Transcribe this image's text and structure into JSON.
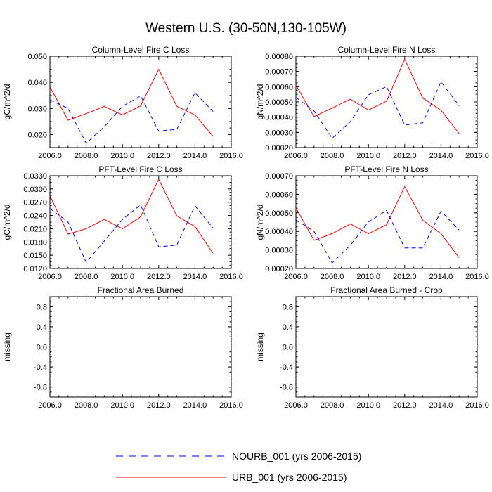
{
  "figure": {
    "title": "Western U.S. (30-50N,130-105W)"
  },
  "colors": {
    "urb": "#ff0000",
    "nourb": "#0000ff",
    "axis": "#000000"
  },
  "legend": {
    "entries": [
      {
        "label": "NOURB_001 (yrs 2006-2015)",
        "series": "nourb",
        "style": "dashed"
      },
      {
        "label": "URB_001 (yrs 2006-2015)",
        "series": "urb",
        "style": "solid"
      }
    ]
  },
  "chart_data": [
    {
      "type": "line",
      "title": "Column-Level Fire C Loss",
      "ylabel": "gC/m^2/d",
      "xlim": [
        2006,
        2016
      ],
      "ylim": [
        0.015,
        0.05
      ],
      "xticks": [
        2006,
        2008,
        2010,
        2012,
        2014,
        2016
      ],
      "xtick_labels": [
        "2006.0",
        "2008.0",
        "2010.0",
        "2012.0",
        "2014.0",
        "2016.0"
      ],
      "yticks": [
        0.02,
        0.03,
        0.04,
        0.05
      ],
      "ytick_labels": [
        "0.020",
        "0.030",
        "0.040",
        "0.050"
      ],
      "x": [
        2006,
        2007,
        2008,
        2009,
        2010,
        2011,
        2012,
        2013,
        2014,
        2015
      ],
      "series": [
        {
          "name": "URB_001",
          "key": "urb",
          "values": [
            0.0383,
            0.0255,
            0.028,
            0.0308,
            0.0275,
            0.031,
            0.045,
            0.0308,
            0.0275,
            0.0193
          ]
        },
        {
          "name": "NOURB_001",
          "key": "nourb",
          "values": [
            0.0333,
            0.03,
            0.0167,
            0.023,
            0.0308,
            0.0348,
            0.0213,
            0.022,
            0.036,
            0.0288
          ]
        }
      ]
    },
    {
      "type": "line",
      "title": "Column-Level Fire N Loss",
      "ylabel": "gN/m^2/d",
      "xlim": [
        2006,
        2016
      ],
      "ylim": [
        0.0002,
        0.0008
      ],
      "xticks": [
        2006,
        2008,
        2010,
        2012,
        2014,
        2016
      ],
      "xtick_labels": [
        "2006.0",
        "2008.0",
        "2010.0",
        "2012.0",
        "2014.0",
        "2016.0"
      ],
      "yticks": [
        0.0002,
        0.0003,
        0.0004,
        0.0005,
        0.0006,
        0.0007,
        0.0008
      ],
      "ytick_labels": [
        "0.00020",
        "0.00030",
        "0.00040",
        "0.00050",
        "0.00060",
        "0.00070",
        "0.00080"
      ],
      "x": [
        2006,
        2007,
        2008,
        2009,
        2010,
        2011,
        2012,
        2013,
        2014,
        2015
      ],
      "series": [
        {
          "name": "URB_001",
          "key": "urb",
          "values": [
            0.00061,
            0.000403,
            0.00046,
            0.000518,
            0.000447,
            0.000505,
            0.00078,
            0.000525,
            0.000445,
            0.000292
          ]
        },
        {
          "name": "NOURB_001",
          "key": "nourb",
          "values": [
            0.00053,
            0.00044,
            0.000262,
            0.00037,
            0.000547,
            0.0006,
            0.000348,
            0.000363,
            0.000632,
            0.000475
          ]
        }
      ]
    },
    {
      "type": "line",
      "title": "PFT-Level Fire C Loss",
      "ylabel": "gC/m^2/d",
      "xlim": [
        2006,
        2016
      ],
      "ylim": [
        0.012,
        0.033
      ],
      "xticks": [
        2006,
        2008,
        2010,
        2012,
        2014,
        2016
      ],
      "xtick_labels": [
        "2006.0",
        "2008.0",
        "2010.0",
        "2012.0",
        "2014.0",
        "2016.0"
      ],
      "yticks": [
        0.012,
        0.015,
        0.018,
        0.021,
        0.024,
        0.027,
        0.03,
        0.033
      ],
      "ytick_labels": [
        "0.0120",
        "0.0150",
        "0.0180",
        "0.0210",
        "0.0240",
        "0.0270",
        "0.0300",
        "0.0330"
      ],
      "x": [
        2006,
        2007,
        2008,
        2009,
        2010,
        2011,
        2012,
        2013,
        2014,
        2015
      ],
      "series": [
        {
          "name": "URB_001",
          "key": "urb",
          "values": [
            0.0285,
            0.0198,
            0.021,
            0.0231,
            0.021,
            0.0237,
            0.0322,
            0.0239,
            0.0215,
            0.0154
          ]
        },
        {
          "name": "NOURB_001",
          "key": "nourb",
          "values": [
            0.0256,
            0.0225,
            0.0134,
            0.0182,
            0.0231,
            0.0264,
            0.0169,
            0.0173,
            0.0262,
            0.0211
          ]
        }
      ]
    },
    {
      "type": "line",
      "title": "PFT-Level Fire N Loss",
      "ylabel": "gN/m^2/d",
      "xlim": [
        2006,
        2016
      ],
      "ylim": [
        0.0002,
        0.0007
      ],
      "xticks": [
        2006,
        2008,
        2010,
        2012,
        2014,
        2016
      ],
      "xtick_labels": [
        "2006.0",
        "2008.0",
        "2010.0",
        "2012.0",
        "2014.0",
        "2016.0"
      ],
      "yticks": [
        0.0002,
        0.0003,
        0.0004,
        0.0005,
        0.0006,
        0.0007
      ],
      "ytick_labels": [
        "0.00020",
        "0.00030",
        "0.00040",
        "0.00050",
        "0.00060",
        "0.00070"
      ],
      "x": [
        2006,
        2007,
        2008,
        2009,
        2010,
        2011,
        2012,
        2013,
        2014,
        2015
      ],
      "series": [
        {
          "name": "URB_001",
          "key": "urb",
          "values": [
            0.000527,
            0.000352,
            0.000388,
            0.00044,
            0.000388,
            0.000436,
            0.000642,
            0.00046,
            0.000388,
            0.000258
          ]
        },
        {
          "name": "NOURB_001",
          "key": "nourb",
          "values": [
            0.000462,
            0.0004,
            0.00023,
            0.000325,
            0.000451,
            0.000513,
            0.000311,
            0.000311,
            0.000509,
            0.000407
          ]
        }
      ]
    },
    {
      "type": "line",
      "title": "Fractional Area Burned",
      "ylabel": "missing",
      "xlim": [
        2006,
        2016
      ],
      "ylim": [
        -1,
        1
      ],
      "xticks": [
        2006,
        2008,
        2010,
        2012,
        2014,
        2016
      ],
      "xtick_labels": [
        "2006.0",
        "2008.0",
        "2010.0",
        "2012.0",
        "2014.0",
        "2016.0"
      ],
      "yticks": [
        -0.8,
        -0.4,
        0,
        0.4,
        0.8
      ],
      "ytick_labels": [
        "-0.8",
        "-0.4",
        "0.0",
        "0.4",
        "0.8"
      ],
      "x": [],
      "series": []
    },
    {
      "type": "line",
      "title": "Fractional Area Burned - Crop",
      "ylabel": "missing",
      "xlim": [
        2006,
        2016
      ],
      "ylim": [
        -1,
        1
      ],
      "xticks": [
        2006,
        2008,
        2010,
        2012,
        2014,
        2016
      ],
      "xtick_labels": [
        "2006.0",
        "2008.0",
        "2010.0",
        "2012.0",
        "2014.0",
        "2016.0"
      ],
      "yticks": [
        -0.8,
        -0.4,
        0,
        0.4,
        0.8
      ],
      "ytick_labels": [
        "-0.8",
        "-0.4",
        "0.0",
        "0.4",
        "0.8"
      ],
      "x": [],
      "series": []
    }
  ]
}
